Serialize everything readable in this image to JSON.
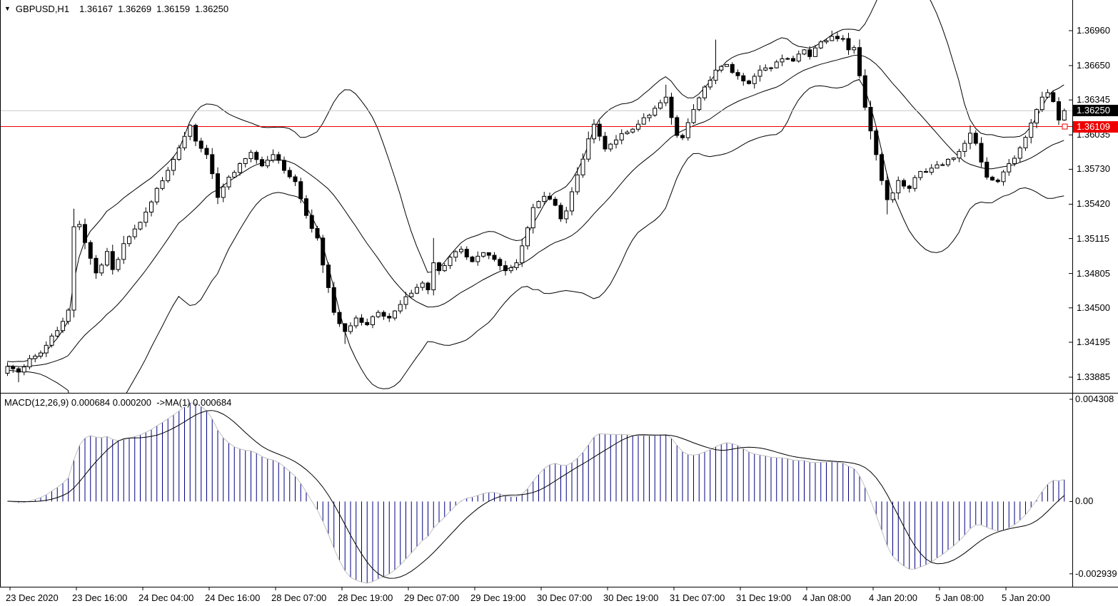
{
  "header": {
    "symbol_label": "GBPUSD,H1",
    "quote_open": "1.36167",
    "quote_high": "1.36269",
    "quote_low": "1.36159",
    "quote_close": "1.36250"
  },
  "macd_label": "MACD(12,26,9) 0.000684 0.000200  ->MA(1) 0.000684",
  "price_axis": {
    "ticks": [
      "1.36960",
      "1.36650",
      "1.36345",
      "1.36035",
      "1.35730",
      "1.35420",
      "1.35115",
      "1.34805",
      "1.34500",
      "1.34195",
      "1.33885"
    ],
    "current_price_label": "1.36250",
    "hline_label": "1.36109"
  },
  "macd_axis": {
    "max_label": "0.004308",
    "zero_label": "0.00",
    "min_label": "-0.002939"
  },
  "time_axis": {
    "labels": [
      "23 Dec 2020",
      "23 Dec 16:00",
      "24 Dec 04:00",
      "24 Dec 16:00",
      "28 Dec 07:00",
      "28 Dec 19:00",
      "29 Dec 07:00",
      "29 Dec 19:00",
      "30 Dec 07:00",
      "30 Dec 19:00",
      "31 Dec 07:00",
      "31 Dec 19:00",
      "4 Jan 08:00",
      "4 Jan 20:00",
      "5 Jan 08:00",
      "5 Jan 20:00"
    ]
  },
  "colors": {
    "background": "#ffffff",
    "foreground": "#000000",
    "candle_up_fill": "#ffffff",
    "candle_down_fill": "#000000",
    "candle_outline": "#000000",
    "bollinger_line": "#000000",
    "macd_histogram": "#000080",
    "macd_line_gray": "#c0c0c0",
    "macd_signal_black": "#000000",
    "hline_red": "#ee0000",
    "current_price_line": "#c8c8c8",
    "badge_current_bg": "#000000",
    "badge_hline_bg": "#ee0000",
    "badge_text": "#ffffff"
  },
  "chart_data": {
    "type": "candlestick",
    "symbol": "GBPUSD",
    "timeframe": "H1",
    "title": "GBPUSD,H1 1.36167 1.36269 1.36159 1.36250",
    "bars": 192,
    "last_bar_ohlc": {
      "open": 1.36167,
      "high": 1.36269,
      "low": 1.36159,
      "close": 1.3625
    },
    "current_price": 1.3625,
    "hline_price": 1.36109,
    "ylim": [
      1.33746,
      1.37232
    ],
    "price_axis_tick_values": [
      1.3696,
      1.3665,
      1.36345,
      1.36035,
      1.3573,
      1.3542,
      1.35115,
      1.34805,
      1.345,
      1.34195,
      1.33885
    ],
    "time_labels": [
      "23 Dec 2020",
      "23 Dec 16:00",
      "24 Dec 04:00",
      "24 Dec 16:00",
      "28 Dec 07:00",
      "28 Dec 19:00",
      "29 Dec 07:00",
      "29 Dec 19:00",
      "30 Dec 07:00",
      "30 Dec 19:00",
      "31 Dec 07:00",
      "31 Dec 19:00",
      "4 Jan 08:00",
      "4 Jan 20:00",
      "5 Jan 08:00",
      "5 Jan 20:00"
    ],
    "close_anchors": [
      [
        0,
        1.3398
      ],
      [
        2,
        1.3393
      ],
      [
        4,
        1.3405
      ],
      [
        6,
        1.341
      ],
      [
        8,
        1.3425
      ],
      [
        10,
        1.3438
      ],
      [
        11,
        1.3448
      ],
      [
        12,
        1.3522
      ],
      [
        13,
        1.3524
      ],
      [
        14,
        1.3508
      ],
      [
        15,
        1.3494
      ],
      [
        16,
        1.3481
      ],
      [
        17,
        1.3488
      ],
      [
        18,
        1.35
      ],
      [
        19,
        1.3484
      ],
      [
        20,
        1.3493
      ],
      [
        21,
        1.3507
      ],
      [
        23,
        1.352
      ],
      [
        25,
        1.3535
      ],
      [
        27,
        1.3556
      ],
      [
        29,
        1.3572
      ],
      [
        31,
        1.3592
      ],
      [
        33,
        1.3612
      ],
      [
        34,
        1.3598
      ],
      [
        36,
        1.3586
      ],
      [
        38,
        1.3548
      ],
      [
        40,
        1.3566
      ],
      [
        42,
        1.3578
      ],
      [
        44,
        1.3588
      ],
      [
        46,
        1.3576
      ],
      [
        48,
        1.3586
      ],
      [
        50,
        1.3572
      ],
      [
        52,
        1.3562
      ],
      [
        54,
        1.3532
      ],
      [
        56,
        1.3512
      ],
      [
        58,
        1.3468
      ],
      [
        59,
        1.3446
      ],
      [
        60,
        1.3436
      ],
      [
        61,
        1.3429
      ],
      [
        63,
        1.3441
      ],
      [
        65,
        1.3435
      ],
      [
        67,
        1.3446
      ],
      [
        69,
        1.3441
      ],
      [
        71,
        1.3453
      ],
      [
        73,
        1.3463
      ],
      [
        75,
        1.3472
      ],
      [
        76,
        1.3466
      ],
      [
        77,
        1.349
      ],
      [
        78,
        1.3483
      ],
      [
        80,
        1.3495
      ],
      [
        82,
        1.3502
      ],
      [
        84,
        1.3491
      ],
      [
        86,
        1.3499
      ],
      [
        88,
        1.3493
      ],
      [
        90,
        1.3483
      ],
      [
        92,
        1.349
      ],
      [
        94,
        1.3521
      ],
      [
        95,
        1.3539
      ],
      [
        97,
        1.3549
      ],
      [
        99,
        1.3541
      ],
      [
        100,
        1.3529
      ],
      [
        101,
        1.3536
      ],
      [
        103,
        1.3568
      ],
      [
        105,
        1.36
      ],
      [
        106,
        1.3613
      ],
      [
        108,
        1.3591
      ],
      [
        110,
        1.3599
      ],
      [
        112,
        1.3606
      ],
      [
        114,
        1.3613
      ],
      [
        116,
        1.3621
      ],
      [
        118,
        1.3632
      ],
      [
        119,
        1.3637
      ],
      [
        121,
        1.3603
      ],
      [
        122,
        1.3601
      ],
      [
        124,
        1.3626
      ],
      [
        126,
        1.3646
      ],
      [
        128,
        1.3661
      ],
      [
        130,
        1.3666
      ],
      [
        132,
        1.3656
      ],
      [
        134,
        1.3649
      ],
      [
        136,
        1.3661
      ],
      [
        138,
        1.3663
      ],
      [
        140,
        1.3671
      ],
      [
        142,
        1.3669
      ],
      [
        144,
        1.3679
      ],
      [
        145,
        1.3673
      ],
      [
        147,
        1.3686
      ],
      [
        149,
        1.3691
      ],
      [
        151,
        1.3689
      ],
      [
        152,
        1.3679
      ],
      [
        153,
        1.3681
      ],
      [
        154,
        1.3656
      ],
      [
        155,
        1.3628
      ],
      [
        156,
        1.3607
      ],
      [
        157,
        1.3586
      ],
      [
        158,
        1.3563
      ],
      [
        159,
        1.3546
      ],
      [
        160,
        1.3552
      ],
      [
        161,
        1.3563
      ],
      [
        163,
        1.3556
      ],
      [
        165,
        1.3571
      ],
      [
        167,
        1.3574
      ],
      [
        169,
        1.3577
      ],
      [
        171,
        1.3583
      ],
      [
        173,
        1.3596
      ],
      [
        174,
        1.3605
      ],
      [
        175,
        1.3596
      ],
      [
        177,
        1.3566
      ],
      [
        179,
        1.3562
      ],
      [
        181,
        1.3578
      ],
      [
        183,
        1.3592
      ],
      [
        185,
        1.3614
      ],
      [
        186,
        1.3626
      ],
      [
        187,
        1.3637
      ],
      [
        188,
        1.3641
      ],
      [
        189,
        1.3633
      ],
      [
        190,
        1.36167
      ],
      [
        191,
        1.3625
      ]
    ],
    "high_wicks": {
      "12": 1.3538,
      "77": 1.3512,
      "119": 1.3648,
      "128": 1.3688,
      "149": 1.3696,
      "174": 1.3612,
      "188": 1.3644
    },
    "low_wicks": {
      "2": 1.3384,
      "61": 1.3418,
      "159": 1.3533
    },
    "indicators": {
      "bollinger": {
        "period": 20,
        "deviation": 2,
        "applied_to": "close"
      },
      "macd": {
        "fast_ema": 12,
        "slow_ema": 26,
        "signal_sma": 9,
        "current_macd": 0.000684,
        "current_signal": 0.0002,
        "overlay": "MA(1)",
        "overlay_value": 0.000684,
        "axis_max": 0.004308,
        "axis_min": -0.002939
      }
    }
  }
}
